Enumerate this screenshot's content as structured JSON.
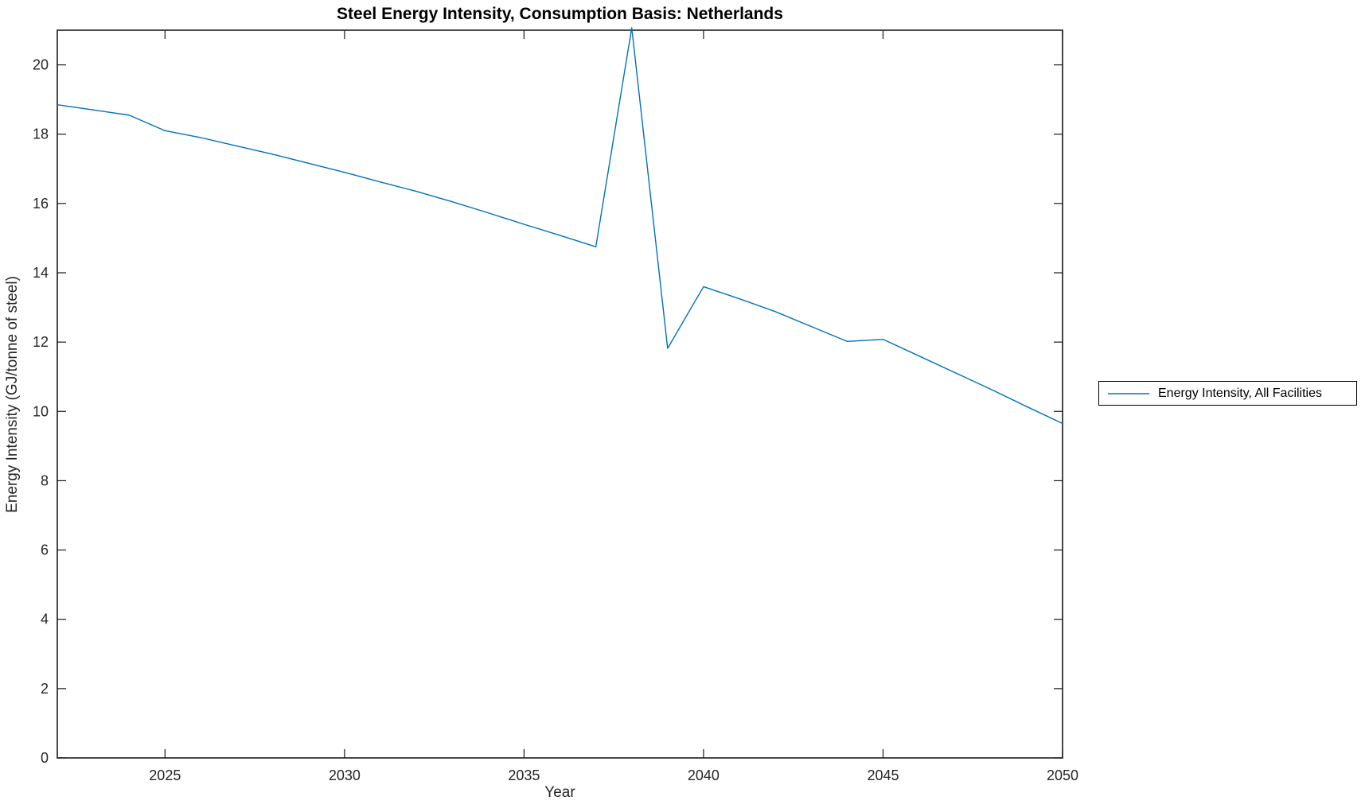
{
  "chart_data": {
    "type": "line",
    "title": "Steel Energy Intensity, Consumption Basis: Netherlands",
    "xlabel": "Year",
    "ylabel": "Energy Intensity (GJ/tonne of steel)",
    "xlim": [
      2022,
      2050
    ],
    "ylim": [
      0,
      21
    ],
    "x_ticks": [
      2025,
      2030,
      2035,
      2040,
      2045,
      2050
    ],
    "y_ticks": [
      0,
      2,
      4,
      6,
      8,
      10,
      12,
      14,
      16,
      18,
      20
    ],
    "grid": false,
    "legend_position": "outside-right",
    "axis_color": "#1a1a1a",
    "tick_label_color": "#262626",
    "x": [
      2022,
      2023,
      2024,
      2025,
      2026,
      2027,
      2028,
      2029,
      2030,
      2031,
      2032,
      2033,
      2034,
      2035,
      2036,
      2037,
      2038,
      2039,
      2040,
      2041,
      2042,
      2043,
      2044,
      2045,
      2046,
      2047,
      2048,
      2049,
      2050
    ],
    "series": [
      {
        "name": "Energy Intensity, All Facilities",
        "color": "#0072BD",
        "values": [
          18.85,
          18.7,
          18.55,
          18.1,
          17.9,
          17.66,
          17.42,
          17.16,
          16.9,
          16.62,
          16.35,
          16.05,
          15.73,
          15.4,
          15.08,
          14.75,
          21.07,
          11.82,
          13.6,
          13.25,
          12.88,
          12.45,
          12.02,
          12.08,
          11.6,
          11.12,
          10.64,
          10.14,
          9.65
        ]
      }
    ]
  }
}
